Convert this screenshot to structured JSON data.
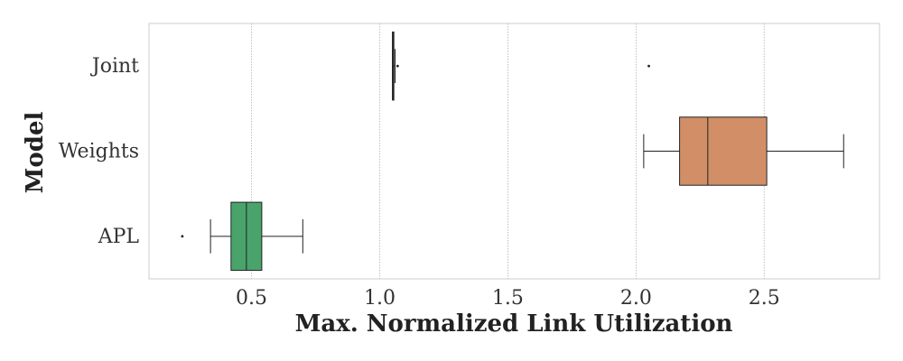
{
  "chart_data": {
    "type": "boxplot",
    "orientation": "horizontal",
    "xlabel": "Max. Normalized Link Utilization",
    "ylabel": "Model",
    "xlim": [
      0.1,
      2.95
    ],
    "xticks": [
      0.5,
      1.0,
      1.5,
      2.0,
      2.5
    ],
    "xtick_labels": [
      "0.5",
      "1.0",
      "1.5",
      "2.0",
      "2.5"
    ],
    "grid": "vertical dotted",
    "categories": [
      "Joint",
      "Weights",
      "APL"
    ],
    "series": [
      {
        "category": "Joint",
        "color": "#2a2a2a",
        "whisker_low": 1.05,
        "q1": 1.05,
        "median": 1.05,
        "q3": 1.055,
        "whisker_high": 1.06,
        "outliers": [
          1.07,
          2.05
        ]
      },
      {
        "category": "Weights",
        "color": "#d28f67",
        "whisker_low": 2.03,
        "q1": 2.17,
        "median": 2.28,
        "q3": 2.51,
        "whisker_high": 2.81,
        "outliers": []
      },
      {
        "category": "APL",
        "color": "#49a36b",
        "whisker_low": 0.34,
        "q1": 0.42,
        "median": 0.48,
        "q3": 0.54,
        "whisker_high": 0.7,
        "outliers": [
          0.23
        ]
      }
    ]
  }
}
